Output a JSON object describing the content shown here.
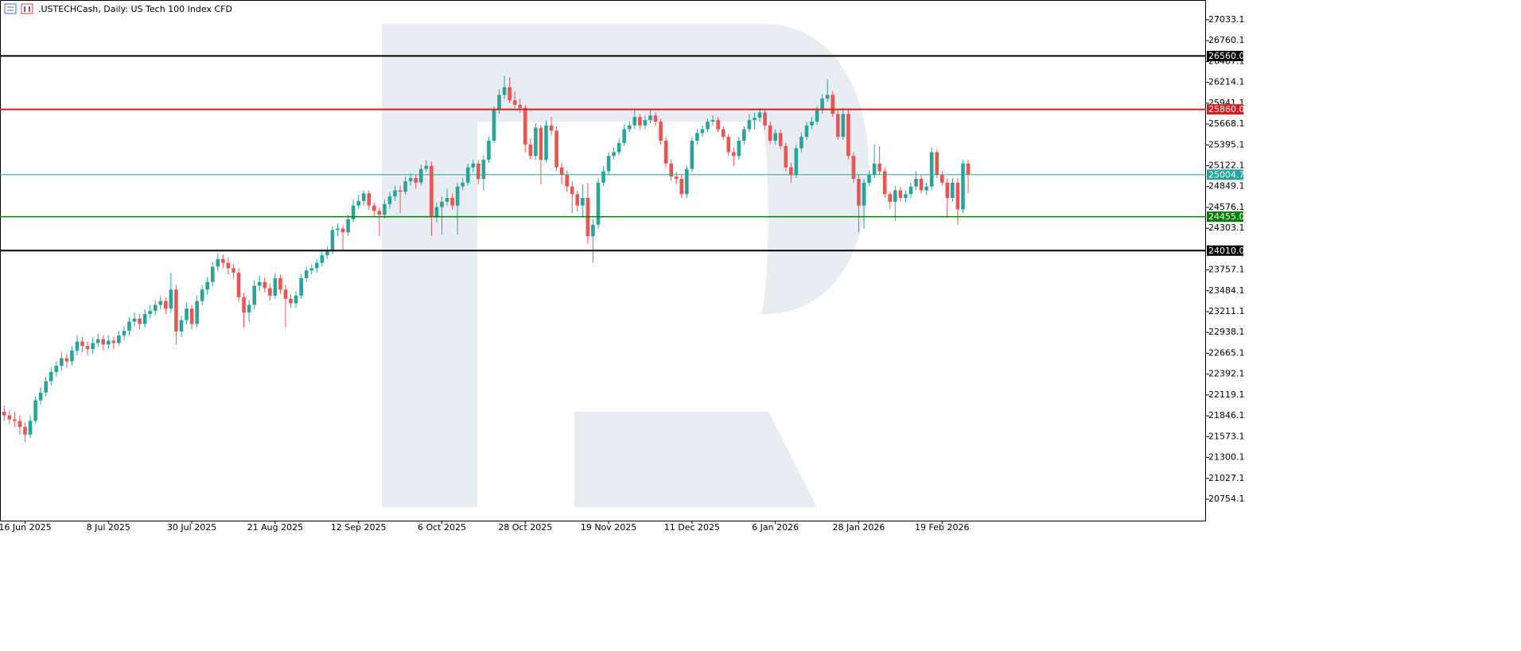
{
  "chart_data": {
    "type": "candlestick",
    "title": ".USTECHCash, Daily:  US Tech 100 Index CFD",
    "up_color": "#26a69a",
    "down_color": "#ef5350",
    "ylim": [
      20473,
      27293
    ],
    "yticks": [
      27033.1,
      26760.1,
      26487.1,
      26214.1,
      25941.1,
      25668.1,
      25395.1,
      25122.1,
      24849.1,
      24576.1,
      24303.1,
      23757.1,
      23484.1,
      23211.1,
      22938.1,
      22665.1,
      22392.1,
      22119.1,
      21846.1,
      21573.1,
      21300.1,
      21027.1,
      20754.1
    ],
    "levels": [
      {
        "price": 26560,
        "label": "26560.0",
        "color": "#000000"
      },
      {
        "price": 25860,
        "label": "25860.0",
        "color": "#e31a1c"
      },
      {
        "price": 25004.7,
        "color": "#26a69a"
      },
      {
        "price": 24455,
        "label": "24455.0",
        "color": "#008000"
      },
      {
        "price": 24010,
        "label": "24010.0",
        "color": "#000000"
      }
    ],
    "categories": [
      null,
      null,
      null,
      null,
      "16 Jun 2025",
      null,
      null,
      null,
      null,
      null,
      null,
      null,
      null,
      null,
      null,
      null,
      null,
      null,
      null,
      null,
      "8 Jul 2025",
      null,
      null,
      null,
      null,
      null,
      null,
      null,
      null,
      null,
      null,
      null,
      null,
      null,
      null,
      null,
      "30 Jul 2025",
      null,
      null,
      null,
      null,
      null,
      null,
      null,
      null,
      null,
      null,
      null,
      null,
      null,
      null,
      null,
      "21 Aug 2025",
      null,
      null,
      null,
      null,
      null,
      null,
      null,
      null,
      null,
      null,
      null,
      null,
      null,
      null,
      null,
      "12 Sep 2025",
      null,
      null,
      null,
      null,
      null,
      null,
      null,
      null,
      null,
      null,
      null,
      null,
      null,
      null,
      null,
      "6 Oct 2025",
      null,
      null,
      null,
      null,
      null,
      null,
      null,
      null,
      null,
      null,
      null,
      null,
      null,
      null,
      null,
      "28 Oct 2025",
      null,
      null,
      null,
      null,
      null,
      null,
      null,
      null,
      null,
      null,
      null,
      null,
      null,
      null,
      null,
      "19 Nov 2025",
      null,
      null,
      null,
      null,
      null,
      null,
      null,
      null,
      null,
      null,
      null,
      null,
      null,
      null,
      null,
      "11 Dec 2025",
      null,
      null,
      null,
      null,
      null,
      null,
      null,
      null,
      null,
      null,
      null,
      null,
      null,
      null,
      null,
      "6 Jan 2026",
      null,
      null,
      null,
      null,
      null,
      null,
      null,
      null,
      null,
      null,
      null,
      null,
      null,
      null,
      null,
      "28 Jan 2026",
      null,
      null,
      null,
      null,
      null,
      null,
      null,
      null,
      null,
      null,
      null,
      null,
      null,
      null,
      null,
      "19 Feb 2026",
      null,
      null,
      null,
      null,
      null
    ],
    "ohlc": [
      [
        21900,
        21980,
        21780,
        21850
      ],
      [
        21850,
        21920,
        21740,
        21800
      ],
      [
        21800,
        21900,
        21700,
        21780
      ],
      [
        21780,
        21850,
        21600,
        21700
      ],
      [
        21700,
        21760,
        21500,
        21600
      ],
      [
        21600,
        21850,
        21560,
        21780
      ],
      [
        21780,
        22100,
        21740,
        22050
      ],
      [
        22050,
        22220,
        21990,
        22150
      ],
      [
        22150,
        22360,
        22100,
        22300
      ],
      [
        22300,
        22480,
        22240,
        22420
      ],
      [
        22420,
        22560,
        22360,
        22500
      ],
      [
        22500,
        22680,
        22440,
        22600
      ],
      [
        22600,
        22660,
        22480,
        22560
      ],
      [
        22560,
        22760,
        22500,
        22700
      ],
      [
        22700,
        22900,
        22640,
        22820
      ],
      [
        22820,
        22880,
        22680,
        22760
      ],
      [
        22760,
        22820,
        22640,
        22720
      ],
      [
        22720,
        22870,
        22660,
        22800
      ],
      [
        22800,
        22920,
        22740,
        22850
      ],
      [
        22850,
        22900,
        22700,
        22780
      ],
      [
        22780,
        22900,
        22720,
        22830
      ],
      [
        22830,
        22880,
        22720,
        22800
      ],
      [
        22800,
        22960,
        22760,
        22900
      ],
      [
        22900,
        23020,
        22840,
        22960
      ],
      [
        22960,
        23140,
        22900,
        23080
      ],
      [
        23080,
        23200,
        23020,
        23120
      ],
      [
        23120,
        23180,
        22980,
        23050
      ],
      [
        23050,
        23240,
        23000,
        23180
      ],
      [
        23180,
        23300,
        23120,
        23220
      ],
      [
        23220,
        23360,
        23160,
        23300
      ],
      [
        23300,
        23420,
        23240,
        23350
      ],
      [
        23350,
        23400,
        23180,
        23250
      ],
      [
        23250,
        23720,
        23200,
        23500
      ],
      [
        23500,
        23560,
        22780,
        22950
      ],
      [
        22950,
        23160,
        22880,
        23100
      ],
      [
        23100,
        23320,
        23040,
        23250
      ],
      [
        23250,
        23300,
        22980,
        23050
      ],
      [
        23050,
        23420,
        23000,
        23350
      ],
      [
        23350,
        23560,
        23300,
        23500
      ],
      [
        23500,
        23660,
        23440,
        23600
      ],
      [
        23600,
        23860,
        23540,
        23800
      ],
      [
        23800,
        23980,
        23740,
        23900
      ],
      [
        23900,
        23960,
        23780,
        23850
      ],
      [
        23850,
        23920,
        23700,
        23780
      ],
      [
        23780,
        23840,
        23640,
        23720
      ],
      [
        23720,
        23780,
        23340,
        23400
      ],
      [
        23400,
        23460,
        23000,
        23200
      ],
      [
        23200,
        23360,
        23080,
        23300
      ],
      [
        23300,
        23620,
        23240,
        23550
      ],
      [
        23550,
        23680,
        23480,
        23600
      ],
      [
        23600,
        23660,
        23460,
        23520
      ],
      [
        23520,
        23580,
        23360,
        23420
      ],
      [
        23420,
        23720,
        23380,
        23650
      ],
      [
        23650,
        23700,
        23440,
        23500
      ],
      [
        23500,
        23560,
        23000,
        23380
      ],
      [
        23380,
        23440,
        23260,
        23320
      ],
      [
        23320,
        23480,
        23260,
        23420
      ],
      [
        23420,
        23700,
        23380,
        23650
      ],
      [
        23650,
        23800,
        23600,
        23750
      ],
      [
        23750,
        23830,
        23700,
        23780
      ],
      [
        23780,
        23900,
        23720,
        23850
      ],
      [
        23850,
        24000,
        23800,
        23950
      ],
      [
        23950,
        24060,
        23900,
        24000
      ],
      [
        24000,
        24330,
        23960,
        24280
      ],
      [
        24280,
        24360,
        24200,
        24300
      ],
      [
        24300,
        24340,
        24020,
        24250
      ],
      [
        24250,
        24480,
        24200,
        24420
      ],
      [
        24420,
        24680,
        24380,
        24600
      ],
      [
        24600,
        24740,
        24560,
        24660
      ],
      [
        24660,
        24800,
        24600,
        24760
      ],
      [
        24760,
        24800,
        24540,
        24600
      ],
      [
        24600,
        24640,
        24460,
        24530
      ],
      [
        24530,
        24580,
        24200,
        24480
      ],
      [
        24480,
        24680,
        24430,
        24620
      ],
      [
        24620,
        24780,
        24560,
        24720
      ],
      [
        24720,
        24860,
        24660,
        24800
      ],
      [
        24800,
        24860,
        24500,
        24780
      ],
      [
        24780,
        24980,
        24740,
        24920
      ],
      [
        24920,
        25020,
        24860,
        24960
      ],
      [
        24960,
        25000,
        24820,
        24900
      ],
      [
        24900,
        25140,
        24860,
        25080
      ],
      [
        25080,
        25200,
        25040,
        25120
      ],
      [
        25120,
        25180,
        24200,
        24450
      ],
      [
        24450,
        24640,
        24380,
        24580
      ],
      [
        24580,
        24720,
        24220,
        24650
      ],
      [
        24650,
        24820,
        24600,
        24700
      ],
      [
        24700,
        24760,
        24550,
        24600
      ],
      [
        24600,
        24900,
        24220,
        24850
      ],
      [
        24850,
        24960,
        24800,
        24900
      ],
      [
        24900,
        25150,
        24860,
        25100
      ],
      [
        25100,
        25200,
        25040,
        25150
      ],
      [
        25150,
        25200,
        24880,
        24950
      ],
      [
        24950,
        25260,
        24800,
        25200
      ],
      [
        25200,
        25500,
        25160,
        25450
      ],
      [
        25450,
        25900,
        25420,
        25850
      ],
      [
        25850,
        26120,
        25800,
        26050
      ],
      [
        26050,
        26300,
        26000,
        26150
      ],
      [
        26150,
        26280,
        25940,
        25980
      ],
      [
        25980,
        26100,
        25880,
        25920
      ],
      [
        25920,
        26000,
        25820,
        25880
      ],
      [
        25880,
        25920,
        25300,
        25400
      ],
      [
        25400,
        25480,
        25200,
        25250
      ],
      [
        25250,
        25680,
        25200,
        25620
      ],
      [
        25620,
        25660,
        24880,
        25200
      ],
      [
        25200,
        25720,
        25160,
        25650
      ],
      [
        25650,
        25760,
        25520,
        25580
      ],
      [
        25580,
        25640,
        25050,
        25100
      ],
      [
        25100,
        25160,
        24880,
        25000
      ],
      [
        25000,
        25060,
        24780,
        24850
      ],
      [
        24850,
        24920,
        24500,
        24750
      ],
      [
        24750,
        24800,
        24520,
        24600
      ],
      [
        24600,
        24880,
        24440,
        24700
      ],
      [
        24700,
        24900,
        24100,
        24200
      ],
      [
        24200,
        24420,
        23850,
        24350
      ],
      [
        24350,
        24960,
        24300,
        24900
      ],
      [
        24900,
        25120,
        24860,
        25050
      ],
      [
        25050,
        25300,
        25000,
        25250
      ],
      [
        25250,
        25360,
        25200,
        25300
      ],
      [
        25300,
        25480,
        25260,
        25420
      ],
      [
        25420,
        25660,
        25380,
        25600
      ],
      [
        25600,
        25700,
        25560,
        25650
      ],
      [
        25650,
        25850,
        25600,
        25760
      ],
      [
        25760,
        25800,
        25600,
        25650
      ],
      [
        25650,
        25780,
        25600,
        25720
      ],
      [
        25720,
        25860,
        25680,
        25780
      ],
      [
        25780,
        25820,
        25640,
        25700
      ],
      [
        25700,
        25740,
        25400,
        25450
      ],
      [
        25450,
        25500,
        25100,
        25150
      ],
      [
        25150,
        25200,
        24920,
        24980
      ],
      [
        24980,
        25040,
        24880,
        24950
      ],
      [
        24950,
        25000,
        24700,
        24750
      ],
      [
        24750,
        25120,
        24700,
        25080
      ],
      [
        25080,
        25500,
        25040,
        25450
      ],
      [
        25450,
        25600,
        25400,
        25550
      ],
      [
        25550,
        25650,
        25500,
        25600
      ],
      [
        25600,
        25740,
        25560,
        25700
      ],
      [
        25700,
        25780,
        25650,
        25720
      ],
      [
        25720,
        25760,
        25560,
        25600
      ],
      [
        25600,
        25640,
        25460,
        25500
      ],
      [
        25500,
        25540,
        25250,
        25300
      ],
      [
        25300,
        25360,
        25120,
        25250
      ],
      [
        25250,
        25500,
        25200,
        25450
      ],
      [
        25450,
        25640,
        25400,
        25600
      ],
      [
        25600,
        25800,
        25560,
        25720
      ],
      [
        25720,
        25820,
        25600,
        25750
      ],
      [
        25750,
        25880,
        25700,
        25820
      ],
      [
        25820,
        25860,
        25600,
        25650
      ],
      [
        25650,
        25700,
        25400,
        25450
      ],
      [
        25450,
        25600,
        25400,
        25550
      ],
      [
        25550,
        25600,
        25340,
        25380
      ],
      [
        25380,
        25420,
        25050,
        25100
      ],
      [
        25100,
        25160,
        24900,
        25000
      ],
      [
        25000,
        25400,
        24960,
        25350
      ],
      [
        25350,
        25560,
        25300,
        25500
      ],
      [
        25500,
        25700,
        25460,
        25650
      ],
      [
        25650,
        25760,
        25600,
        25700
      ],
      [
        25700,
        25900,
        25660,
        25850
      ],
      [
        25850,
        26060,
        25800,
        26000
      ],
      [
        26000,
        26250,
        25960,
        26050
      ],
      [
        26050,
        26100,
        25760,
        25800
      ],
      [
        25800,
        25860,
        25460,
        25500
      ],
      [
        25500,
        25880,
        25460,
        25800
      ],
      [
        25800,
        25880,
        25200,
        25250
      ],
      [
        25250,
        25300,
        24900,
        24950
      ],
      [
        24950,
        25000,
        24250,
        24600
      ],
      [
        24600,
        24950,
        24300,
        24900
      ],
      [
        24900,
        25060,
        24860,
        25000
      ],
      [
        25000,
        25400,
        24960,
        25150
      ],
      [
        25150,
        25380,
        25000,
        25050
      ],
      [
        25050,
        25100,
        24700,
        24750
      ],
      [
        24750,
        24780,
        24560,
        24650
      ],
      [
        24650,
        24860,
        24400,
        24800
      ],
      [
        24800,
        24840,
        24650,
        24700
      ],
      [
        24700,
        24800,
        24640,
        24750
      ],
      [
        24750,
        24900,
        24700,
        24850
      ],
      [
        24850,
        25050,
        24800,
        24950
      ],
      [
        24950,
        25000,
        24760,
        24800
      ],
      [
        24800,
        24900,
        24740,
        24850
      ],
      [
        24850,
        25360,
        24800,
        25300
      ],
      [
        25300,
        25340,
        24960,
        25000
      ],
      [
        25000,
        25060,
        24860,
        24900
      ],
      [
        24900,
        24960,
        24440,
        24700
      ],
      [
        24700,
        24960,
        24650,
        24900
      ],
      [
        24900,
        24960,
        24350,
        24550
      ],
      [
        24550,
        25200,
        24500,
        25150
      ],
      [
        25150,
        25200,
        24760,
        25004.7
      ]
    ]
  }
}
